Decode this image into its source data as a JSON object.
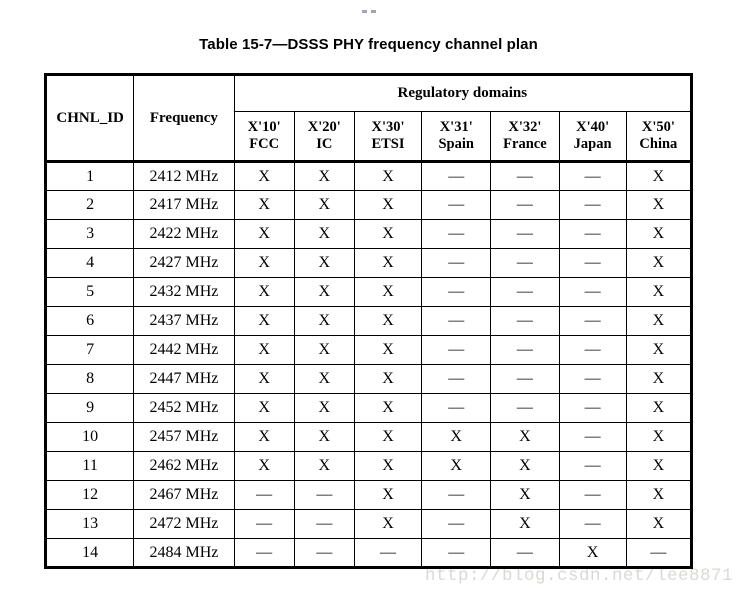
{
  "page": {
    "title": "Table 15-7—DSSS PHY frequency channel plan",
    "watermark": "http://blog.csdn.net/lee8871"
  },
  "colors": {
    "text": "#000000",
    "border": "#000000",
    "background": "#ffffff",
    "watermark": "#dbd9d1"
  },
  "table": {
    "header": {
      "chnl_id": "CHNL_ID",
      "frequency": "Frequency",
      "group": "Regulatory domains",
      "domains": [
        {
          "code": "X'10'",
          "name": "FCC"
        },
        {
          "code": "X'20'",
          "name": "IC"
        },
        {
          "code": "X'30'",
          "name": "ETSI"
        },
        {
          "code": "X'31'",
          "name": "Spain"
        },
        {
          "code": "X'32'",
          "name": "France"
        },
        {
          "code": "X'40'",
          "name": "Japan"
        },
        {
          "code": "X'50'",
          "name": "China"
        }
      ]
    },
    "rows": [
      {
        "chnl_id": "1",
        "frequency": "2412 MHz",
        "cells": [
          "X",
          "X",
          "X",
          "—",
          "—",
          "—",
          "X"
        ]
      },
      {
        "chnl_id": "2",
        "frequency": "2417 MHz",
        "cells": [
          "X",
          "X",
          "X",
          "—",
          "—",
          "—",
          "X"
        ]
      },
      {
        "chnl_id": "3",
        "frequency": "2422 MHz",
        "cells": [
          "X",
          "X",
          "X",
          "—",
          "—",
          "—",
          "X"
        ]
      },
      {
        "chnl_id": "4",
        "frequency": "2427 MHz",
        "cells": [
          "X",
          "X",
          "X",
          "—",
          "—",
          "—",
          "X"
        ]
      },
      {
        "chnl_id": "5",
        "frequency": "2432 MHz",
        "cells": [
          "X",
          "X",
          "X",
          "—",
          "—",
          "—",
          "X"
        ]
      },
      {
        "chnl_id": "6",
        "frequency": "2437 MHz",
        "cells": [
          "X",
          "X",
          "X",
          "—",
          "—",
          "—",
          "X"
        ]
      },
      {
        "chnl_id": "7",
        "frequency": "2442 MHz",
        "cells": [
          "X",
          "X",
          "X",
          "—",
          "—",
          "—",
          "X"
        ]
      },
      {
        "chnl_id": "8",
        "frequency": "2447 MHz",
        "cells": [
          "X",
          "X",
          "X",
          "—",
          "—",
          "—",
          "X"
        ]
      },
      {
        "chnl_id": "9",
        "frequency": "2452 MHz",
        "cells": [
          "X",
          "X",
          "X",
          "—",
          "—",
          "—",
          "X"
        ]
      },
      {
        "chnl_id": "10",
        "frequency": "2457 MHz",
        "cells": [
          "X",
          "X",
          "X",
          "X",
          "X",
          "—",
          "X"
        ]
      },
      {
        "chnl_id": "11",
        "frequency": "2462 MHz",
        "cells": [
          "X",
          "X",
          "X",
          "X",
          "X",
          "—",
          "X"
        ]
      },
      {
        "chnl_id": "12",
        "frequency": "2467 MHz",
        "cells": [
          "—",
          "—",
          "X",
          "—",
          "X",
          "—",
          "X"
        ]
      },
      {
        "chnl_id": "13",
        "frequency": "2472 MHz",
        "cells": [
          "—",
          "—",
          "X",
          "—",
          "X",
          "—",
          "X"
        ]
      },
      {
        "chnl_id": "14",
        "frequency": "2484 MHz",
        "cells": [
          "—",
          "—",
          "—",
          "—",
          "—",
          "X",
          "—"
        ]
      }
    ]
  }
}
